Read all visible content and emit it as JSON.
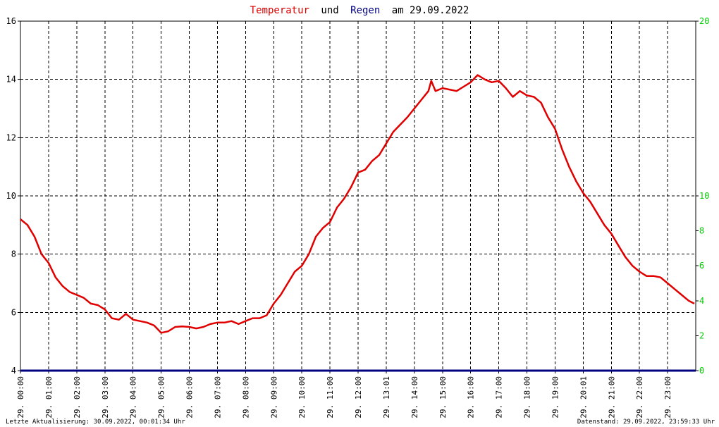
{
  "title": {
    "part1": "Temperatur",
    "part2": "und",
    "part3": "Regen",
    "part4": "am 29.09.2022",
    "color1": "#e00000",
    "color3": "#000080",
    "colorText": "#000000"
  },
  "footer": {
    "left": "Letzte Aktualisierung: 30.09.2022, 00:01:34 Uhr",
    "right": "Datenstand: 29.09.2022, 23:59:33 Uhr"
  },
  "chart_data": {
    "type": "line",
    "title": "Temperatur und Regen am 29.09.2022",
    "x_tick_labels": [
      "29. 00:00",
      "29. 01:00",
      "29. 02:00",
      "29. 03:00",
      "29. 04:00",
      "29. 05:00",
      "29. 06:00",
      "29. 07:00",
      "29. 08:00",
      "29. 09:00",
      "29. 10:00",
      "29. 11:00",
      "29. 12:00",
      "29. 13:01",
      "29. 14:00",
      "29. 15:00",
      "29. 16:00",
      "29. 17:00",
      "29. 18:00",
      "29. 19:00",
      "29. 20:01",
      "29. 21:00",
      "29. 22:00",
      "29. 23:00"
    ],
    "xlim_hours": [
      0,
      24
    ],
    "y_left": {
      "ylim": [
        4,
        16
      ],
      "ticks": [
        "4",
        "6",
        "8",
        "10",
        "12",
        "14",
        "16"
      ]
    },
    "y_right": {
      "ylim": [
        0,
        20
      ],
      "ticks": [
        "0",
        "2",
        "4",
        "6",
        "8",
        "10",
        "20"
      ],
      "tick_values": [
        0,
        2,
        4,
        6,
        8,
        10,
        20
      ],
      "color": "#00cc00"
    },
    "grid": true,
    "series": [
      {
        "name": "Temperatur",
        "color": "#e00000",
        "axis": "left",
        "x": [
          0,
          0.25,
          0.5,
          0.75,
          1,
          1.25,
          1.5,
          1.75,
          2,
          2.25,
          2.5,
          2.75,
          3,
          3.25,
          3.5,
          3.75,
          4,
          4.25,
          4.5,
          4.75,
          5,
          5.25,
          5.5,
          5.75,
          6,
          6.25,
          6.5,
          6.75,
          7,
          7.25,
          7.5,
          7.75,
          8,
          8.25,
          8.5,
          8.75,
          9,
          9.25,
          9.5,
          9.75,
          10,
          10.25,
          10.5,
          10.75,
          11,
          11.25,
          11.5,
          11.75,
          12,
          12.25,
          12.5,
          12.75,
          13,
          13.25,
          13.5,
          13.75,
          14,
          14.25,
          14.5,
          14.6,
          14.75,
          15,
          15.25,
          15.5,
          15.75,
          16,
          16.25,
          16.5,
          16.75,
          17,
          17.25,
          17.5,
          17.75,
          18,
          18.25,
          18.5,
          18.75,
          19,
          19.25,
          19.5,
          19.75,
          20,
          20.25,
          20.5,
          20.75,
          21,
          21.25,
          21.5,
          21.75,
          22,
          22.25,
          22.5,
          22.75,
          23,
          23.25,
          23.5,
          23.75,
          23.95
        ],
        "values": [
          9.2,
          9.0,
          8.6,
          8.0,
          7.7,
          7.2,
          6.9,
          6.7,
          6.6,
          6.5,
          6.3,
          6.25,
          6.1,
          5.8,
          5.75,
          5.95,
          5.75,
          5.7,
          5.65,
          5.55,
          5.3,
          5.35,
          5.5,
          5.52,
          5.5,
          5.45,
          5.5,
          5.6,
          5.65,
          5.65,
          5.7,
          5.6,
          5.7,
          5.8,
          5.8,
          5.9,
          6.3,
          6.6,
          7.0,
          7.4,
          7.6,
          8.0,
          8.6,
          8.9,
          9.1,
          9.6,
          9.9,
          10.3,
          10.8,
          10.9,
          11.2,
          11.4,
          11.8,
          12.2,
          12.45,
          12.7,
          13.0,
          13.3,
          13.6,
          13.95,
          13.6,
          13.7,
          13.65,
          13.6,
          13.75,
          13.9,
          14.15,
          14.0,
          13.9,
          13.95,
          13.7,
          13.4,
          13.6,
          13.45,
          13.4,
          13.2,
          12.7,
          12.3,
          11.6,
          11.0,
          10.5,
          10.1,
          9.8,
          9.4,
          9.0,
          8.7,
          8.3,
          7.9,
          7.6,
          7.4,
          7.25,
          7.25,
          7.2,
          7.0,
          6.8,
          6.6,
          6.4,
          6.3
        ]
      },
      {
        "name": "Regen",
        "color": "#000080",
        "axis": "right",
        "x": [
          0,
          24
        ],
        "values": [
          0,
          0
        ]
      }
    ]
  }
}
